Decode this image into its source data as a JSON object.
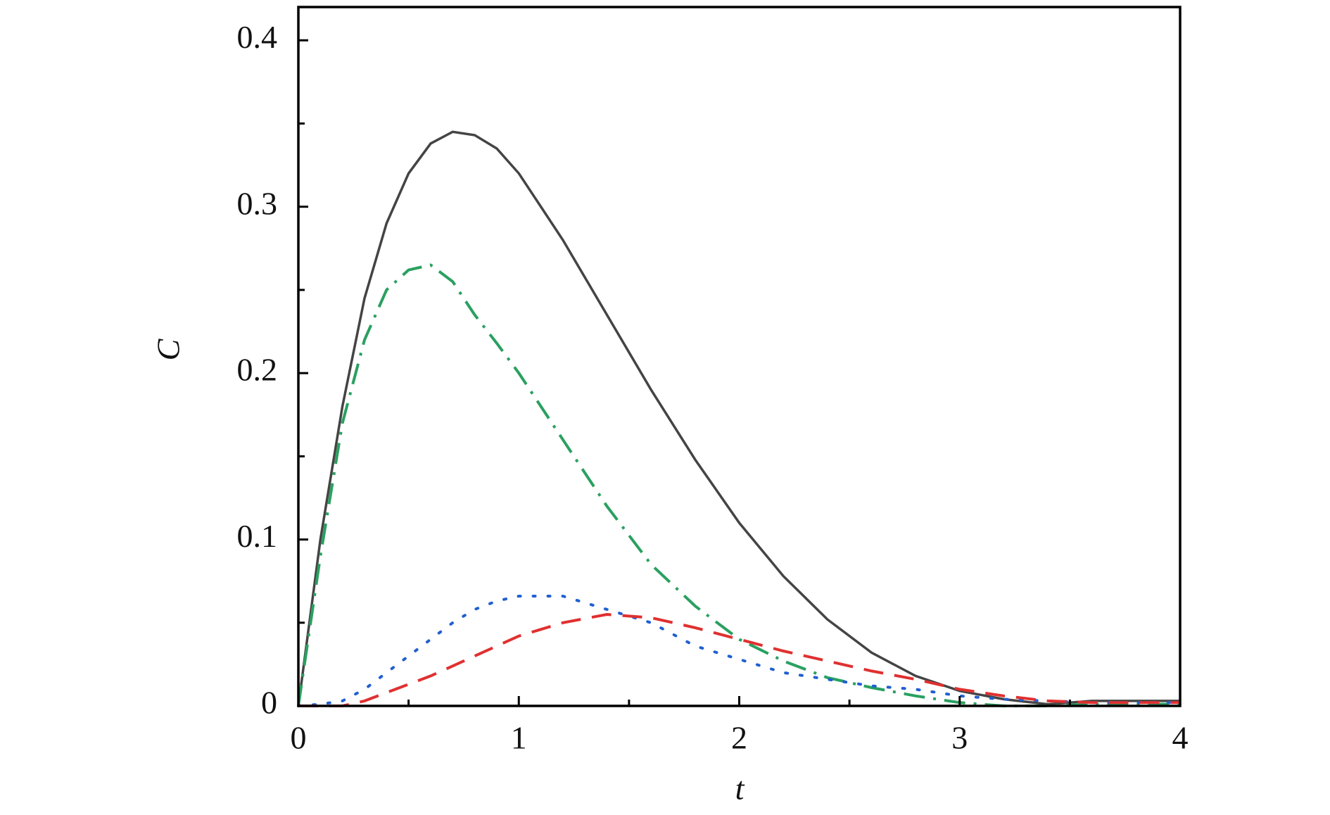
{
  "chart_data": {
    "type": "line",
    "xlabel": "t",
    "ylabel": "C",
    "x": [
      0,
      0.1,
      0.2,
      0.3,
      0.4,
      0.5,
      0.6,
      0.7,
      0.8,
      0.9,
      1.0,
      1.2,
      1.4,
      1.6,
      1.8,
      2.0,
      2.2,
      2.4,
      2.6,
      2.8,
      3.0,
      3.2,
      3.4,
      3.6,
      3.8,
      4.0
    ],
    "series": [
      {
        "color": "#444444",
        "dash": "solid",
        "values": [
          0,
          0.1,
          0.18,
          0.245,
          0.29,
          0.32,
          0.338,
          0.345,
          0.343,
          0.335,
          0.32,
          0.28,
          0.235,
          0.19,
          0.148,
          0.11,
          0.078,
          0.052,
          0.032,
          0.018,
          0.009,
          0.004,
          0.001,
          0.003,
          0.003,
          0.003
        ]
      },
      {
        "color": "#2aa060",
        "dash": "dashdot",
        "values": [
          0,
          0.09,
          0.17,
          0.22,
          0.25,
          0.262,
          0.265,
          0.255,
          0.235,
          0.218,
          0.2,
          0.16,
          0.12,
          0.085,
          0.06,
          0.04,
          0.027,
          0.017,
          0.011,
          0.006,
          0.002,
          0,
          0,
          0.001,
          0.001,
          0.001
        ]
      },
      {
        "color": "#2060d0",
        "dash": "dotted",
        "values": [
          0,
          0.001,
          0.003,
          0.01,
          0.02,
          0.03,
          0.04,
          0.05,
          0.058,
          0.063,
          0.066,
          0.066,
          0.058,
          0.05,
          0.036,
          0.028,
          0.02,
          0.016,
          0.012,
          0.01,
          0.006,
          0.004,
          0.003,
          0.002,
          0.002,
          0.002
        ]
      },
      {
        "color": "#e03030",
        "dash": "dashed",
        "values": [
          0,
          0,
          0,
          0.003,
          0.008,
          0.013,
          0.018,
          0.024,
          0.03,
          0.036,
          0.042,
          0.05,
          0.055,
          0.053,
          0.047,
          0.04,
          0.033,
          0.027,
          0.021,
          0.016,
          0.01,
          0.006,
          0.003,
          0.002,
          0.002,
          0.002
        ]
      }
    ],
    "xlim": [
      0,
      4
    ],
    "xticks": [
      0,
      1,
      2,
      3,
      4
    ],
    "xminorticks": [
      0.5,
      1.5,
      2.5,
      3.5
    ],
    "ylim": [
      0,
      0.42
    ],
    "yticks": [
      0,
      0.1,
      0.2,
      0.3,
      0.4
    ],
    "yminorticks": [
      0.05,
      0.15,
      0.25,
      0.35
    ],
    "grid": false
  }
}
